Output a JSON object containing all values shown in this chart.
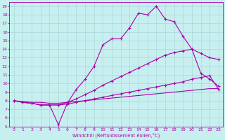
{
  "title": "",
  "xlabel": "Windchill (Refroidissement éolien,°C)",
  "ylabel": "",
  "bg_color": "#c8efef",
  "grid_color": "#a8d8d8",
  "line_color": "#aa00aa",
  "xlim": [
    -0.5,
    23.5
  ],
  "ylim": [
    5,
    19.5
  ],
  "xticks": [
    0,
    1,
    2,
    3,
    4,
    5,
    6,
    7,
    8,
    9,
    10,
    11,
    12,
    13,
    14,
    15,
    16,
    17,
    18,
    19,
    20,
    21,
    22,
    23
  ],
  "yticks": [
    5,
    6,
    7,
    8,
    9,
    10,
    11,
    12,
    13,
    14,
    15,
    16,
    17,
    18,
    19
  ],
  "curve1_x": [
    0,
    1,
    2,
    3,
    4,
    5,
    6,
    7,
    8,
    9,
    10,
    11,
    12,
    13,
    14,
    15,
    16,
    17,
    18,
    19,
    20,
    21,
    22,
    23
  ],
  "curve1_y": [
    8.0,
    7.8,
    7.7,
    7.5,
    7.5,
    5.2,
    7.7,
    9.3,
    10.5,
    12.0,
    14.5,
    15.2,
    15.2,
    16.5,
    18.2,
    18.0,
    19.0,
    17.5,
    17.2,
    15.5,
    14.0,
    11.2,
    10.5,
    9.7
  ],
  "curve2_x": [
    0,
    1,
    2,
    3,
    4,
    5,
    6,
    7,
    8,
    9,
    10,
    11,
    12,
    13,
    14,
    15,
    16,
    17,
    18,
    19,
    20,
    21,
    22,
    23
  ],
  "curve2_y": [
    8.0,
    7.8,
    7.7,
    7.5,
    7.5,
    7.5,
    7.8,
    8.2,
    8.7,
    9.2,
    9.8,
    10.3,
    10.8,
    11.3,
    11.8,
    12.3,
    12.8,
    13.3,
    13.6,
    13.8,
    14.0,
    13.5,
    13.0,
    12.8
  ],
  "curve3_x": [
    0,
    1,
    2,
    3,
    4,
    5,
    6,
    7,
    8,
    9,
    10,
    11,
    12,
    13,
    14,
    15,
    16,
    17,
    18,
    19,
    20,
    21,
    22,
    23
  ],
  "curve3_y": [
    8.0,
    7.8,
    7.7,
    7.5,
    7.5,
    7.5,
    7.6,
    7.8,
    8.0,
    8.2,
    8.4,
    8.6,
    8.8,
    9.0,
    9.2,
    9.4,
    9.6,
    9.8,
    10.0,
    10.2,
    10.5,
    10.7,
    10.9,
    9.3
  ],
  "curve4_x": [
    0,
    1,
    2,
    3,
    4,
    5,
    6,
    7,
    8,
    9,
    10,
    11,
    12,
    13,
    14,
    15,
    16,
    17,
    18,
    19,
    20,
    21,
    22,
    23
  ],
  "curve4_y": [
    8.0,
    7.9,
    7.8,
    7.8,
    7.7,
    7.7,
    7.8,
    7.9,
    8.0,
    8.1,
    8.2,
    8.3,
    8.4,
    8.5,
    8.6,
    8.7,
    8.8,
    8.9,
    9.0,
    9.1,
    9.2,
    9.3,
    9.4,
    9.4
  ]
}
